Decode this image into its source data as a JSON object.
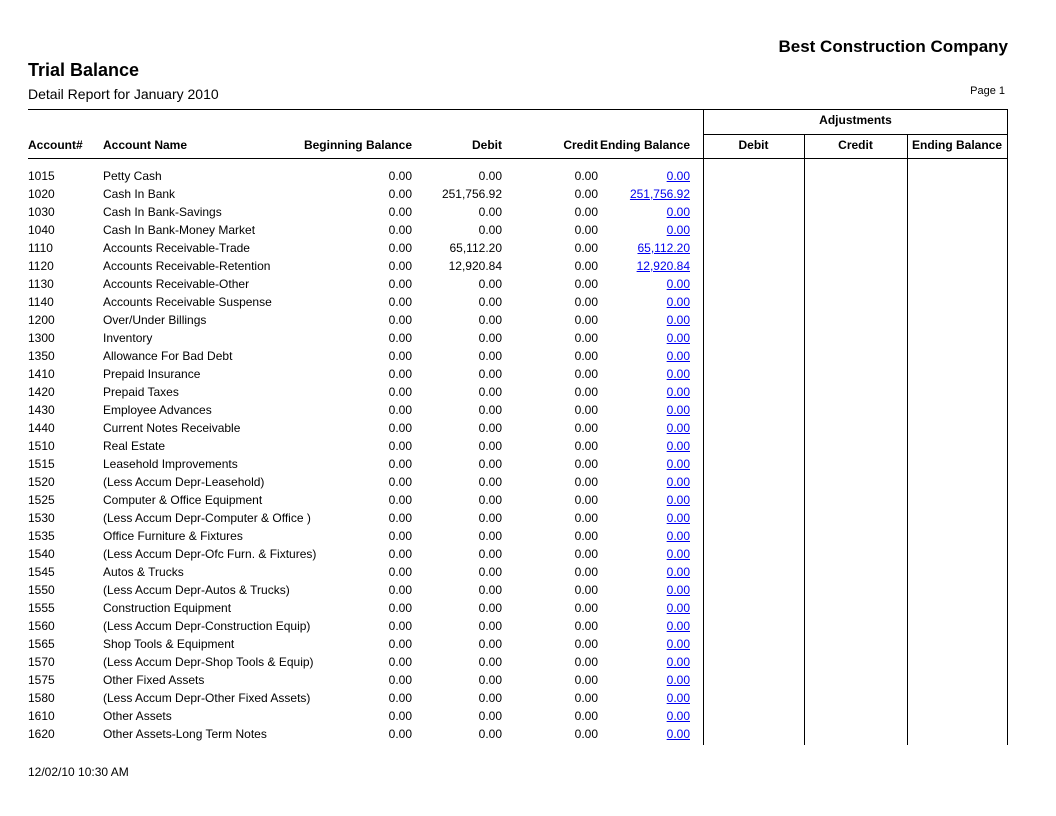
{
  "report": {
    "company": "Best Construction Company",
    "title": "Trial Balance",
    "subtitle": "Detail Report for January 2010",
    "page_label": "Page 1",
    "timestamp": "12/02/10 10:30 AM"
  },
  "colors": {
    "text": "#000000",
    "line": "#000000",
    "link": "#0000ee",
    "background": "#ffffff"
  },
  "table": {
    "headers": {
      "account_num": "Account#",
      "account_name": "Account Name",
      "beginning_balance": "Beginning Balance",
      "debit": "Debit",
      "credit": "Credit",
      "ending_balance": "Ending Balance",
      "adjustments": "Adjustments",
      "adj_debit": "Debit",
      "adj_credit": "Credit",
      "adj_ending_balance": "Ending Balance"
    },
    "rows": [
      {
        "num": "1015",
        "name": "Petty Cash",
        "beginning": "0.00",
        "debit": "0.00",
        "credit": "0.00",
        "ending": "0.00"
      },
      {
        "num": "1020",
        "name": "Cash In Bank",
        "beginning": "0.00",
        "debit": "251,756.92",
        "credit": "0.00",
        "ending": "251,756.92"
      },
      {
        "num": "1030",
        "name": "Cash In Bank-Savings",
        "beginning": "0.00",
        "debit": "0.00",
        "credit": "0.00",
        "ending": "0.00"
      },
      {
        "num": "1040",
        "name": "Cash In Bank-Money Market",
        "beginning": "0.00",
        "debit": "0.00",
        "credit": "0.00",
        "ending": "0.00"
      },
      {
        "num": "1110",
        "name": "Accounts Receivable-Trade",
        "beginning": "0.00",
        "debit": "65,112.20",
        "credit": "0.00",
        "ending": "65,112.20"
      },
      {
        "num": "1120",
        "name": "Accounts Receivable-Retention",
        "beginning": "0.00",
        "debit": "12,920.84",
        "credit": "0.00",
        "ending": "12,920.84"
      },
      {
        "num": "1130",
        "name": "Accounts Receivable-Other",
        "beginning": "0.00",
        "debit": "0.00",
        "credit": "0.00",
        "ending": "0.00"
      },
      {
        "num": "1140",
        "name": "Accounts Receivable Suspense",
        "beginning": "0.00",
        "debit": "0.00",
        "credit": "0.00",
        "ending": "0.00"
      },
      {
        "num": "1200",
        "name": "Over/Under Billings",
        "beginning": "0.00",
        "debit": "0.00",
        "credit": "0.00",
        "ending": "0.00"
      },
      {
        "num": "1300",
        "name": "Inventory",
        "beginning": "0.00",
        "debit": "0.00",
        "credit": "0.00",
        "ending": "0.00"
      },
      {
        "num": "1350",
        "name": "Allowance For Bad Debt",
        "beginning": "0.00",
        "debit": "0.00",
        "credit": "0.00",
        "ending": "0.00"
      },
      {
        "num": "1410",
        "name": "Prepaid Insurance",
        "beginning": "0.00",
        "debit": "0.00",
        "credit": "0.00",
        "ending": "0.00"
      },
      {
        "num": "1420",
        "name": "Prepaid Taxes",
        "beginning": "0.00",
        "debit": "0.00",
        "credit": "0.00",
        "ending": "0.00"
      },
      {
        "num": "1430",
        "name": "Employee Advances",
        "beginning": "0.00",
        "debit": "0.00",
        "credit": "0.00",
        "ending": "0.00"
      },
      {
        "num": "1440",
        "name": "Current Notes Receivable",
        "beginning": "0.00",
        "debit": "0.00",
        "credit": "0.00",
        "ending": "0.00"
      },
      {
        "num": "1510",
        "name": "Real Estate",
        "beginning": "0.00",
        "debit": "0.00",
        "credit": "0.00",
        "ending": "0.00"
      },
      {
        "num": "1515",
        "name": "Leasehold Improvements",
        "beginning": "0.00",
        "debit": "0.00",
        "credit": "0.00",
        "ending": "0.00"
      },
      {
        "num": "1520",
        "name": "(Less Accum Depr-Leasehold)",
        "beginning": "0.00",
        "debit": "0.00",
        "credit": "0.00",
        "ending": "0.00"
      },
      {
        "num": "1525",
        "name": "Computer & Office Equipment",
        "beginning": "0.00",
        "debit": "0.00",
        "credit": "0.00",
        "ending": "0.00"
      },
      {
        "num": "1530",
        "name": "(Less Accum Depr-Computer & Office )",
        "beginning": "0.00",
        "debit": "0.00",
        "credit": "0.00",
        "ending": "0.00"
      },
      {
        "num": "1535",
        "name": "Office Furniture & Fixtures",
        "beginning": "0.00",
        "debit": "0.00",
        "credit": "0.00",
        "ending": "0.00"
      },
      {
        "num": "1540",
        "name": "(Less Accum Depr-Ofc Furn. & Fixtures)",
        "beginning": "0.00",
        "debit": "0.00",
        "credit": "0.00",
        "ending": "0.00"
      },
      {
        "num": "1545",
        "name": "Autos & Trucks",
        "beginning": "0.00",
        "debit": "0.00",
        "credit": "0.00",
        "ending": "0.00"
      },
      {
        "num": "1550",
        "name": "(Less Accum Depr-Autos & Trucks)",
        "beginning": "0.00",
        "debit": "0.00",
        "credit": "0.00",
        "ending": "0.00"
      },
      {
        "num": "1555",
        "name": "Construction Equipment",
        "beginning": "0.00",
        "debit": "0.00",
        "credit": "0.00",
        "ending": "0.00"
      },
      {
        "num": "1560",
        "name": "(Less Accum Depr-Construction Equip)",
        "beginning": "0.00",
        "debit": "0.00",
        "credit": "0.00",
        "ending": "0.00"
      },
      {
        "num": "1565",
        "name": "Shop Tools & Equipment",
        "beginning": "0.00",
        "debit": "0.00",
        "credit": "0.00",
        "ending": "0.00"
      },
      {
        "num": "1570",
        "name": "(Less Accum Depr-Shop Tools & Equip)",
        "beginning": "0.00",
        "debit": "0.00",
        "credit": "0.00",
        "ending": "0.00"
      },
      {
        "num": "1575",
        "name": "Other Fixed Assets",
        "beginning": "0.00",
        "debit": "0.00",
        "credit": "0.00",
        "ending": "0.00"
      },
      {
        "num": "1580",
        "name": "(Less Accum Depr-Other Fixed Assets)",
        "beginning": "0.00",
        "debit": "0.00",
        "credit": "0.00",
        "ending": "0.00"
      },
      {
        "num": "1610",
        "name": "Other Assets",
        "beginning": "0.00",
        "debit": "0.00",
        "credit": "0.00",
        "ending": "0.00"
      },
      {
        "num": "1620",
        "name": "Other Assets-Long Term Notes",
        "beginning": "0.00",
        "debit": "0.00",
        "credit": "0.00",
        "ending": "0.00"
      }
    ]
  }
}
